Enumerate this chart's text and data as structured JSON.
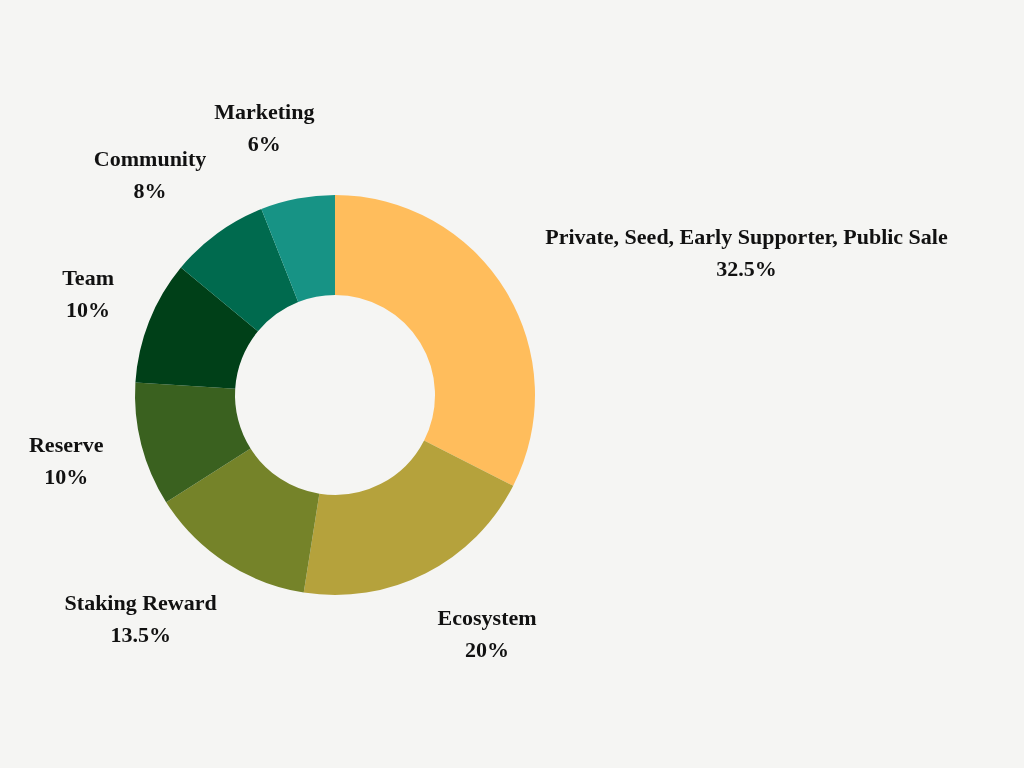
{
  "chart_data": {
    "type": "donut",
    "categories": [
      "Private, Seed, Early Supporter, Public Sale",
      "Ecosystem",
      "Staking Reward",
      "Reserve",
      "Team",
      "Community",
      "Marketing"
    ],
    "values": [
      32.5,
      20,
      13.5,
      10,
      10,
      8,
      6
    ],
    "value_labels": [
      "32.5%",
      "20%",
      "13.5%",
      "10%",
      "10%",
      "8%",
      "6%"
    ],
    "colors": [
      "#ffbd5c",
      "#b5a23c",
      "#758329",
      "#3a611f",
      "#004018",
      "#006a4e",
      "#179385"
    ],
    "legend": false
  }
}
